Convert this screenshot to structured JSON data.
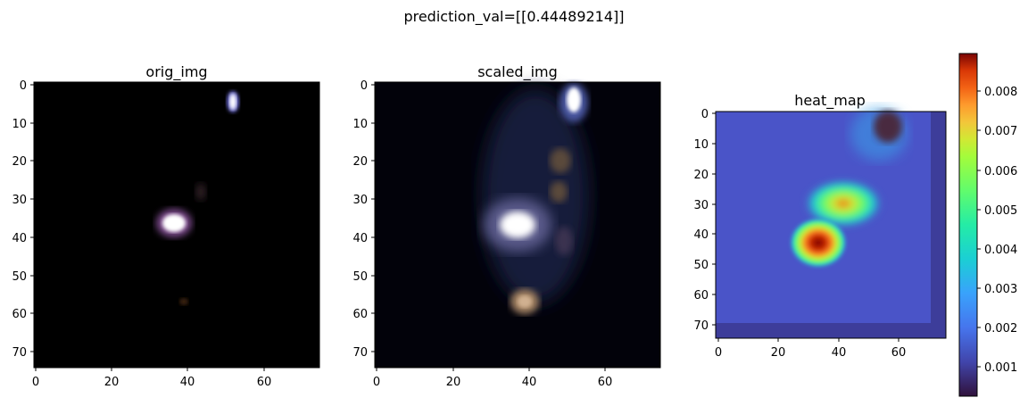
{
  "figure": {
    "suptitle": "prediction_val=[[0.44489214]]"
  },
  "panels": [
    {
      "id": "orig",
      "title": "orig_img",
      "x_ticks": [
        "0",
        "20",
        "40",
        "60"
      ],
      "y_ticks": [
        "0",
        "10",
        "20",
        "30",
        "40",
        "50",
        "60",
        "70"
      ]
    },
    {
      "id": "scaled",
      "title": "scaled_img",
      "x_ticks": [
        "0",
        "20",
        "40",
        "60"
      ],
      "y_ticks": [
        "0",
        "10",
        "20",
        "30",
        "40",
        "50",
        "60",
        "70"
      ]
    },
    {
      "id": "heat",
      "title": "heat_map",
      "x_ticks": [
        "0",
        "20",
        "40",
        "60"
      ],
      "y_ticks": [
        "0",
        "10",
        "20",
        "30",
        "40",
        "50",
        "60",
        "70"
      ]
    }
  ],
  "colorbar": {
    "colormap": "turbo",
    "range": [
      0.0002,
      0.0089
    ],
    "ticks": [
      "0.001",
      "0.002",
      "0.003",
      "0.004",
      "0.005",
      "0.006",
      "0.007",
      "0.008"
    ]
  },
  "colors": {
    "image_background": "#000000",
    "heatmap_base": "#4a54c8",
    "hot_spot": "#8b1010",
    "axis": "#000000"
  }
}
